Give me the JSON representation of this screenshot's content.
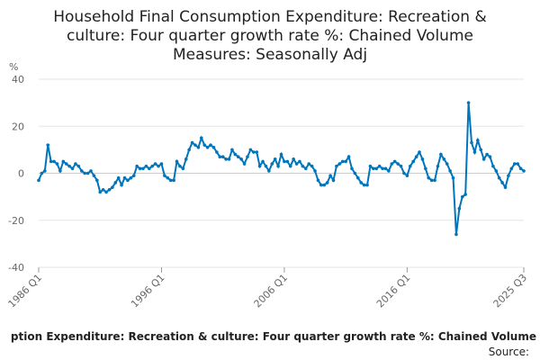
{
  "chart_data": {
    "type": "line",
    "title": [
      "Household Final Consumption Expenditure: Recreation &",
      "culture: Four quarter growth rate %: Chained Volume",
      "Measures: Seasonally Adj"
    ],
    "y_label": "%",
    "footer": [
      "ption Expenditure: Recreation & culture: Four quarter growth rate %: Chained Volume",
      "Source:"
    ],
    "categories": [
      "1986 Q1",
      null,
      null,
      null,
      null,
      null,
      null,
      null,
      null,
      null,
      null,
      null,
      null,
      null,
      null,
      null,
      null,
      null,
      null,
      null,
      null,
      null,
      null,
      null,
      null,
      null,
      null,
      null,
      null,
      null,
      null,
      null,
      null,
      null,
      null,
      null,
      null,
      null,
      null,
      null,
      "1996 Q1",
      null,
      null,
      null,
      null,
      null,
      null,
      null,
      null,
      null,
      null,
      null,
      null,
      null,
      null,
      null,
      null,
      null,
      null,
      null,
      null,
      null,
      null,
      null,
      null,
      null,
      null,
      null,
      null,
      null,
      null,
      null,
      null,
      null,
      null,
      null,
      null,
      null,
      null,
      null,
      "2006 Q1",
      null,
      null,
      null,
      null,
      null,
      null,
      null,
      null,
      null,
      null,
      null,
      null,
      null,
      null,
      null,
      null,
      null,
      null,
      null,
      null,
      null,
      null,
      null,
      null,
      null,
      null,
      null,
      null,
      null,
      null,
      null,
      null,
      null,
      null,
      null,
      null,
      null,
      null,
      null,
      "2016 Q1",
      null,
      null,
      null,
      null,
      null,
      null,
      null,
      null,
      null,
      null,
      null,
      null,
      null,
      null,
      null,
      null,
      null,
      null,
      null,
      null,
      null,
      null,
      null,
      null,
      null,
      null,
      null,
      null,
      null,
      null,
      null,
      null,
      null,
      null,
      null,
      null,
      null,
      "2025 Q3"
    ],
    "series": [
      {
        "color": "#0075bc",
        "values": [
          -3,
          0,
          1,
          12,
          5,
          5,
          4,
          1,
          5,
          4,
          3,
          2,
          4,
          3,
          1,
          0,
          0,
          1,
          -1,
          -3,
          -8,
          -7,
          -8,
          -7,
          -6,
          -4,
          -2,
          -5,
          -2,
          -3,
          -2,
          -1,
          3,
          2,
          2,
          3,
          2,
          3,
          4,
          3,
          4,
          -1,
          -2,
          -3,
          -3,
          5,
          3,
          2,
          6,
          10,
          13,
          12,
          11,
          15,
          12,
          11,
          12,
          11,
          9,
          7,
          7,
          6,
          6,
          10,
          8,
          7,
          6,
          4,
          7,
          10,
          9,
          9,
          3,
          5,
          3,
          1,
          4,
          6,
          3,
          8,
          5,
          5,
          3,
          6,
          4,
          5,
          3,
          2,
          4,
          3,
          1,
          -3,
          -5,
          -5,
          -4,
          -1,
          -3,
          3,
          4,
          5,
          5,
          7,
          2,
          0,
          -2,
          -4,
          -5,
          -5,
          3,
          2,
          2,
          3,
          2,
          2,
          1,
          4,
          5,
          4,
          3,
          0,
          -1,
          3,
          5,
          7,
          9,
          6,
          2,
          -2,
          -3,
          -3,
          3,
          8,
          6,
          4,
          1,
          -2,
          -26,
          -15,
          -10,
          -9,
          30,
          13,
          9,
          14,
          10,
          6,
          8,
          7,
          3,
          1,
          -2,
          -4,
          -6,
          -1,
          2,
          4,
          4,
          2,
          1
        ]
      }
    ],
    "ylim": [
      -40,
      40
    ],
    "yticks": [
      40,
      20,
      0,
      -20,
      -40
    ],
    "grid": true
  }
}
